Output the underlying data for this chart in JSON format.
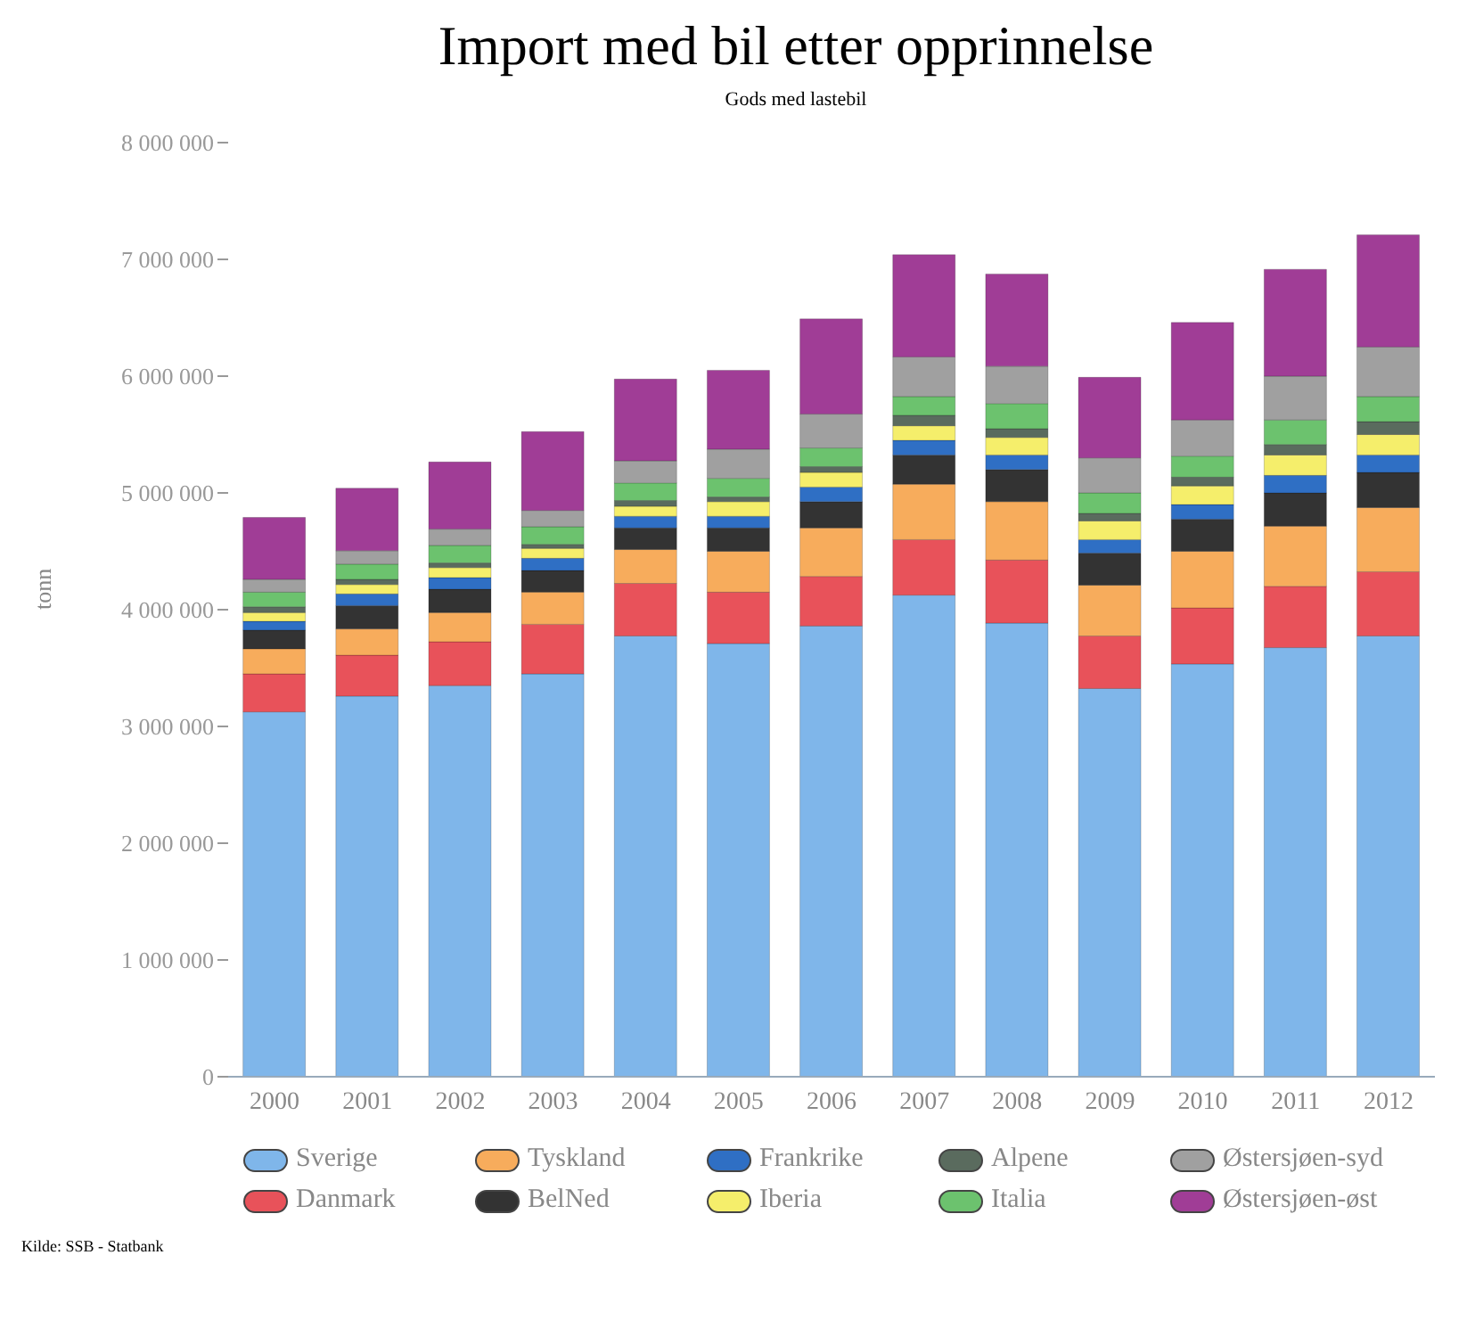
{
  "chart_data": {
    "type": "bar",
    "title": "Import med bil etter opprinnelse",
    "subtitle": "Gods med lastebil",
    "ylabel": "tonn",
    "annotations": [
      "Kilde: SSB - Statbank"
    ],
    "categories": [
      "2000",
      "2001",
      "2002",
      "2003",
      "2004",
      "2005",
      "2006",
      "2007",
      "2008",
      "2009",
      "2010",
      "2011",
      "2012"
    ],
    "stacked": true,
    "grid": false,
    "legend": "bottom",
    "ylim": [
      0,
      8000000
    ],
    "yticks": [
      {
        "value": 0,
        "label": "0"
      },
      {
        "value": 1000000,
        "label": "1 000 000"
      },
      {
        "value": 2000000,
        "label": "2 000 000"
      },
      {
        "value": 3000000,
        "label": "3 000 000"
      },
      {
        "value": 4000000,
        "label": "4 000 000"
      },
      {
        "value": 5000000,
        "label": "5 000 000"
      },
      {
        "value": 6000000,
        "label": "6 000 000"
      },
      {
        "value": 7000000,
        "label": "7 000 000"
      },
      {
        "value": 8000000,
        "label": "8 000 000"
      }
    ],
    "series": [
      {
        "name": "Sverige",
        "color": "#7fb6ea",
        "values": [
          3125000,
          3260000,
          3350000,
          3450000,
          3775000,
          3710000,
          3860000,
          4125000,
          3885000,
          3325000,
          3535000,
          3675000,
          3775000
        ]
      },
      {
        "name": "Danmark",
        "color": "#e8525a",
        "values": [
          325000,
          350000,
          375000,
          425000,
          450000,
          440000,
          425000,
          475000,
          540000,
          450000,
          480000,
          525000,
          550000
        ]
      },
      {
        "name": "Tyskland",
        "color": "#f7ac5c",
        "values": [
          215000,
          225000,
          250000,
          275000,
          290000,
          350000,
          415000,
          475000,
          500000,
          435000,
          485000,
          515000,
          550000
        ]
      },
      {
        "name": "BelNed",
        "color": "#333333",
        "values": [
          160000,
          200000,
          200000,
          185000,
          185000,
          200000,
          225000,
          250000,
          275000,
          275000,
          275000,
          285000,
          300000
        ]
      },
      {
        "name": "Frankrike",
        "color": "#2f6fc4",
        "values": [
          75000,
          100000,
          100000,
          105000,
          100000,
          100000,
          125000,
          125000,
          125000,
          115000,
          125000,
          150000,
          150000
        ]
      },
      {
        "name": "Iberia",
        "color": "#f5ee6b",
        "values": [
          75000,
          80000,
          85000,
          85000,
          85000,
          125000,
          125000,
          125000,
          150000,
          160000,
          160000,
          175000,
          175000
        ]
      },
      {
        "name": "Alpene",
        "color": "#5a6b5e",
        "values": [
          50000,
          45000,
          40000,
          35000,
          50000,
          40000,
          50000,
          90000,
          75000,
          65000,
          75000,
          90000,
          110000
        ]
      },
      {
        "name": "Italia",
        "color": "#6cc26e",
        "values": [
          125000,
          130000,
          150000,
          150000,
          150000,
          160000,
          160000,
          160000,
          215000,
          175000,
          180000,
          210000,
          215000
        ]
      },
      {
        "name": "Østersjøen-syd",
        "color": "#a0a0a0",
        "values": [
          110000,
          115000,
          140000,
          140000,
          190000,
          250000,
          290000,
          340000,
          320000,
          300000,
          310000,
          375000,
          425000
        ]
      },
      {
        "name": "Østersjøen-øst",
        "color": "#a03d96",
        "values": [
          530000,
          535000,
          575000,
          675000,
          700000,
          675000,
          815000,
          875000,
          790000,
          690000,
          835000,
          915000,
          960000
        ]
      }
    ]
  }
}
